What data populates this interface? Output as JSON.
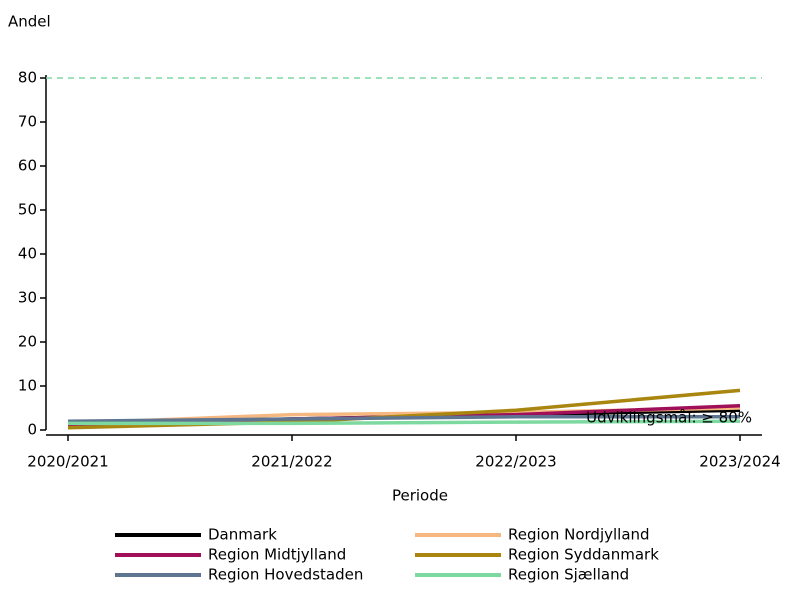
{
  "chart_data": {
    "type": "line",
    "y_label": "Andel",
    "x_label": "Periode",
    "categories": [
      "2020/2021",
      "2021/2022",
      "2022/2023",
      "2023/2024"
    ],
    "series": [
      {
        "name": "Danmark",
        "color": "#000000",
        "values": [
          1.5,
          2.5,
          3.5,
          4.5
        ]
      },
      {
        "name": "Region Nordjylland",
        "color": "#f5b880",
        "values": [
          1.5,
          3.5,
          4,
          5
        ]
      },
      {
        "name": "Region Midtjylland",
        "color": "#a0105a",
        "values": [
          1,
          2.5,
          3.5,
          5.5
        ]
      },
      {
        "name": "Region Syddanmark",
        "color": "#a8860f",
        "values": [
          0.5,
          1.8,
          4.5,
          9
        ]
      },
      {
        "name": "Region Hovedstaden",
        "color": "#5d7590",
        "values": [
          2,
          2.5,
          3,
          3
        ]
      },
      {
        "name": "Region Sjælland",
        "color": "#7dd9a0",
        "values": [
          1.5,
          1.5,
          1.8,
          2
        ]
      }
    ],
    "target": 80,
    "target_color": "#7dd9a0",
    "target_label": "Udviklingsmål: ≥ 80%",
    "ylim": [
      0,
      80
    ],
    "yticks": [
      0,
      10,
      20,
      30,
      40,
      50,
      60,
      70,
      80
    ]
  }
}
